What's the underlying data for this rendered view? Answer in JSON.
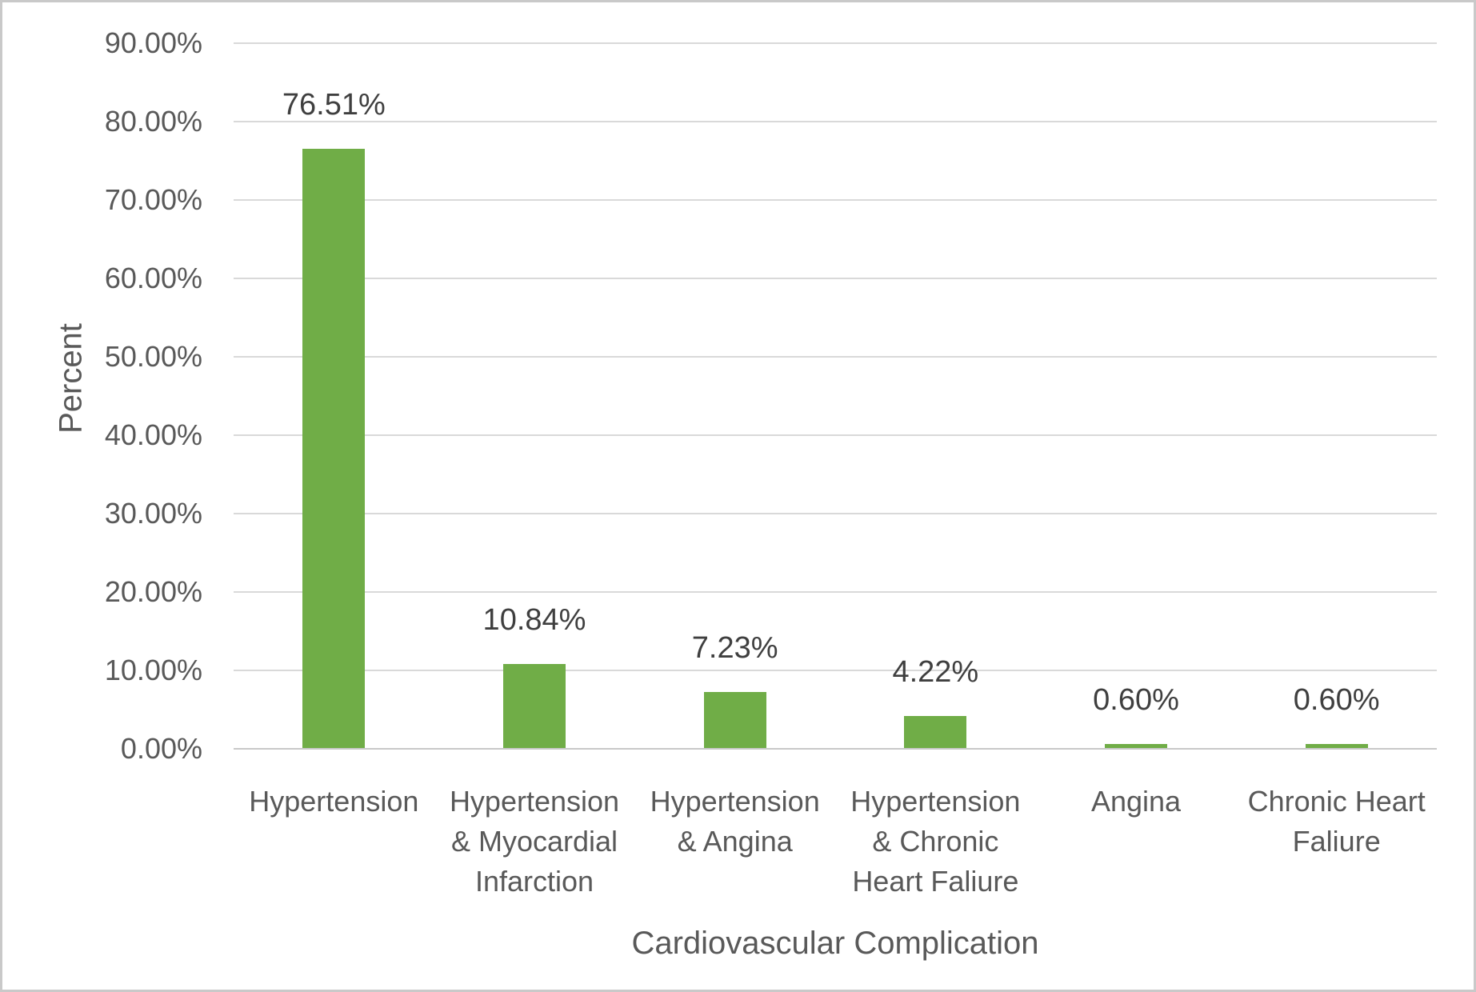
{
  "chart_data": {
    "type": "bar",
    "title": "",
    "xlabel": "Cardiovascular Complication",
    "ylabel": "Percent",
    "categories": [
      "Hypertension",
      "Hypertension\n& Myocardial\nInfarction",
      "Hypertension\n& Angina",
      "Hypertension\n& Chronic\nHeart Faliure",
      "Angina",
      "Chronic Heart\nFaliure"
    ],
    "values": [
      76.51,
      10.84,
      7.23,
      4.22,
      0.6,
      0.6
    ],
    "data_labels": [
      "76.51%",
      "10.84%",
      "7.23%",
      "4.22%",
      "0.60%",
      "0.60%"
    ],
    "ytick_values": [
      0,
      10,
      20,
      30,
      40,
      50,
      60,
      70,
      80,
      90
    ],
    "ytick_labels": [
      "0.00%",
      "10.00%",
      "20.00%",
      "30.00%",
      "40.00%",
      "50.00%",
      "60.00%",
      "70.00%",
      "80.00%",
      "90.00%"
    ],
    "ylim": [
      0,
      90
    ],
    "grid": "horizontal",
    "legend": "none"
  },
  "colors": {
    "bar": "#70AD47",
    "gridline": "#D9D9D9",
    "axis_line": "#C9C9C9",
    "tick_text": "#595959",
    "category_text": "#595959",
    "title_text": "#595959",
    "data_label_text": "#3F3F3F",
    "frame_border": "#C9C9C9",
    "background": "#FFFFFF"
  }
}
